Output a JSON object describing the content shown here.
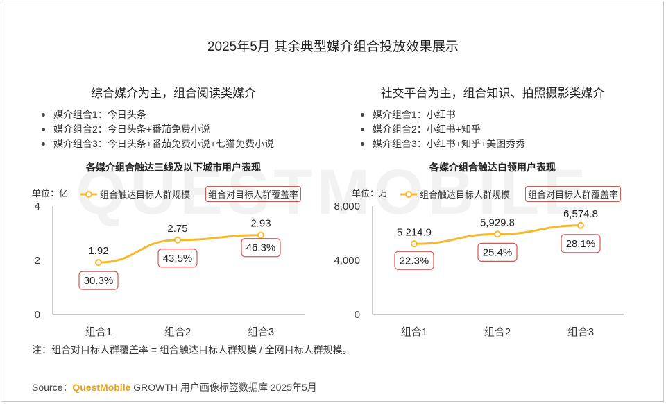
{
  "page": {
    "title": "2025年5月 其余典型媒介组合投放效果展示",
    "note": "注：组合对目标人群覆盖率 = 组合触达目标人群规模 / 全网目标人群规模。",
    "source_prefix": "Source：",
    "source_brand": "QuestMobile",
    "source_rest": " GROWTH 用户画像标签数据库 2025年5月",
    "watermark": "QUESTMOBILE"
  },
  "colors": {
    "line": "#f7b92c",
    "point_fill": "#ffffff",
    "coverage_border": "#d9534f",
    "axis": "#999999"
  },
  "panels": [
    {
      "subtitle": "综合媒介为主，组合阅读类媒介",
      "bullets": [
        "媒介组合1：今日头条",
        "媒介组合2：今日头条+番茄免费小说",
        "媒介组合3：今日头条+番茄免费小说+七猫免费小说"
      ]
    },
    {
      "subtitle": "社交平台为主，组合知识、拍照摄影类媒介",
      "bullets": [
        "媒介组合1：小红书",
        "媒介组合2：小红书+知乎",
        "媒介组合3：小红书+知乎+美图秀秀"
      ]
    }
  ],
  "chart_data": [
    {
      "type": "line",
      "title": "各媒介组合触达三线及以下城市用户表现",
      "unit_label": "单位：亿",
      "legend": [
        "组合触达目标人群规模",
        "组合对目标人群覆盖率"
      ],
      "categories": [
        "组合1",
        "组合2",
        "组合3"
      ],
      "series": [
        {
          "name": "组合触达目标人群规模",
          "values": [
            1.92,
            2.75,
            2.93
          ],
          "labels": [
            "1.92",
            "2.75",
            "2.93"
          ]
        }
      ],
      "coverage": [
        "30.3%",
        "43.5%",
        "46.3%"
      ],
      "yticks": [
        "4",
        "2",
        "0"
      ],
      "ylim": [
        0,
        4
      ]
    },
    {
      "type": "line",
      "title": "各媒介组合触达白领用户表现",
      "unit_label": "单位：万",
      "legend": [
        "组合触达目标人群规模",
        "组合对目标人群覆盖率"
      ],
      "categories": [
        "组合1",
        "组合2",
        "组合3"
      ],
      "series": [
        {
          "name": "组合触达目标人群规模",
          "values": [
            5214.9,
            5929.8,
            6574.8
          ],
          "labels": [
            "5,214.9",
            "5,929.8",
            "6,574.8"
          ]
        }
      ],
      "coverage": [
        "22.3%",
        "25.4%",
        "28.1%"
      ],
      "yticks": [
        "8,000",
        "4,000",
        "0"
      ],
      "ylim": [
        0,
        8000
      ]
    }
  ]
}
